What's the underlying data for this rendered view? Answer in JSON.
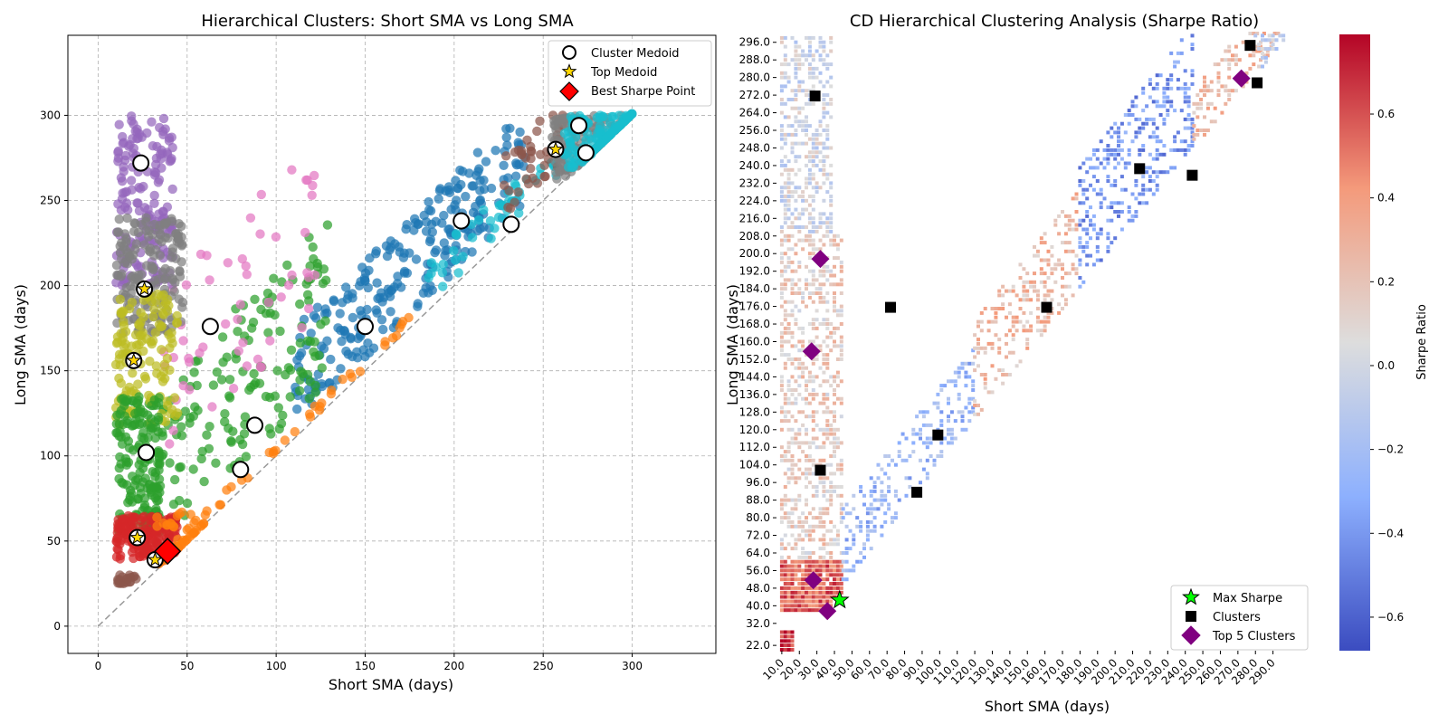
{
  "colors": {
    "blue": "#1f77b4",
    "orange": "#ff7f0e",
    "green": "#2ca02c",
    "red": "#d62728",
    "purple": "#9467bd",
    "brown": "#8c564b",
    "pink": "#e377c2",
    "gray": "#7f7f7f",
    "olive": "#bcbd22",
    "cyan": "#17becf",
    "gold": "#ffd700",
    "best": "#ff0000",
    "max_star": "#00ff00",
    "top_cluster": "#800080"
  },
  "chart_data": [
    {
      "type": "scatter",
      "title": "Hierarchical Clusters: Short SMA vs Long SMA",
      "xlabel": "Short SMA (days)",
      "ylabel": "Long SMA (days)",
      "xlim": [
        -17,
        347
      ],
      "ylim": [
        -16,
        347
      ],
      "xticks": [
        0,
        50,
        100,
        150,
        200,
        250,
        300
      ],
      "yticks": [
        0,
        50,
        100,
        150,
        200,
        250,
        300
      ],
      "grid": true,
      "diagonal": [
        [
          0,
          0
        ],
        [
          300,
          300
        ]
      ],
      "legend": {
        "position": "top-right",
        "items": [
          {
            "label": "Cluster Medoid",
            "marker": "open-circle"
          },
          {
            "label": "Top Medoid",
            "marker": "star"
          },
          {
            "label": "Best Sharpe Point",
            "marker": "diamond"
          }
        ]
      },
      "cluster_regions": [
        {
          "color": "purple",
          "x": [
            10,
            42
          ],
          "y": [
            200,
            300
          ],
          "n": 180
        },
        {
          "color": "gray",
          "x": [
            10,
            48
          ],
          "y": [
            172,
            240
          ],
          "n": 170
        },
        {
          "color": "olive",
          "x": [
            10,
            45
          ],
          "y": [
            118,
            195
          ],
          "n": 130
        },
        {
          "color": "green",
          "x": [
            10,
            35
          ],
          "y": [
            55,
            135
          ],
          "n": 160
        },
        {
          "color": "red",
          "x": [
            10,
            45
          ],
          "y": [
            38,
            65
          ],
          "n": 190
        },
        {
          "color": "brown",
          "x": [
            10,
            22
          ],
          "y": [
            22,
            30
          ],
          "n": 20
        },
        {
          "color": "orange",
          "x": [
            28,
            60
          ],
          "y": [
            32,
            68
          ],
          "n": 40
        },
        {
          "color": "gray",
          "x": [
            255,
            300
          ],
          "y": [
            262,
            300
          ],
          "n": 150
        },
        {
          "color": "cyan",
          "x": [
            262,
            300
          ],
          "y": [
            268,
            300
          ],
          "n": 140
        }
      ],
      "cluster_bands": [
        {
          "color": "blue",
          "x": [
            110,
            240
          ],
          "dmin": 8,
          "dmax": 65,
          "n": 260
        },
        {
          "color": "green",
          "x": [
            25,
            130
          ],
          "dmin": 14,
          "dmax": 110,
          "n": 170
        },
        {
          "color": "orange",
          "x": [
            45,
            175
          ],
          "dmin": 2,
          "dmax": 8,
          "n": 40
        },
        {
          "color": "cyan",
          "x": [
            185,
            262
          ],
          "dmin": 5,
          "dmax": 30,
          "n": 45
        },
        {
          "color": "brown",
          "x": [
            228,
            262
          ],
          "dmin": 10,
          "dmax": 50,
          "n": 40
        },
        {
          "color": "pink",
          "x": [
            35,
            125
          ],
          "dmin": 60,
          "dmax": 165,
          "n": 55
        }
      ],
      "medoids": [
        [
          24,
          272
        ],
        [
          26,
          198
        ],
        [
          20,
          156
        ],
        [
          27,
          102
        ],
        [
          22,
          52
        ],
        [
          32,
          39
        ],
        [
          63,
          176
        ],
        [
          88,
          118
        ],
        [
          80,
          92
        ],
        [
          150,
          176
        ],
        [
          204,
          238
        ],
        [
          232,
          236
        ],
        [
          257,
          280
        ],
        [
          270,
          294
        ],
        [
          274,
          278
        ]
      ],
      "top_medoids": [
        [
          26,
          198
        ],
        [
          20,
          156
        ],
        [
          22,
          52
        ],
        [
          32,
          39
        ],
        [
          257,
          280
        ]
      ],
      "best_sharpe_point": [
        39,
        44
      ]
    },
    {
      "type": "heatmap",
      "title": "CD Hierarchical Clustering Analysis (Sharpe Ratio)",
      "xlabel": "Short SMA (days)",
      "ylabel": "Long SMA (days)",
      "xlim": [
        8,
        300
      ],
      "ylim": [
        20,
        300
      ],
      "xticks": [
        "10.0",
        "20.0",
        "30.0",
        "40.0",
        "50.0",
        "60.0",
        "70.0",
        "80.0",
        "90.0",
        "100.0",
        "110.0",
        "120.0",
        "130.0",
        "140.0",
        "150.0",
        "160.0",
        "170.0",
        "180.0",
        "190.0",
        "200.0",
        "210.0",
        "220.0",
        "230.0",
        "240.0",
        "250.0",
        "260.0",
        "270.0",
        "280.0",
        "290.0"
      ],
      "yticks": [
        "22.0",
        "32.0",
        "40.0",
        "48.0",
        "56.0",
        "64.0",
        "72.0",
        "80.0",
        "88.0",
        "96.0",
        "104.0",
        "112.0",
        "120.0",
        "128.0",
        "136.0",
        "144.0",
        "152.0",
        "160.0",
        "168.0",
        "176.0",
        "184.0",
        "192.0",
        "200.0",
        "208.0",
        "216.0",
        "224.0",
        "232.0",
        "240.0",
        "248.0",
        "256.0",
        "264.0",
        "272.0",
        "280.0",
        "288.0",
        "296.0"
      ],
      "colorbar": {
        "label": "Sharpe Ratio",
        "range": [
          -0.68,
          0.79
        ],
        "ticks": [
          "−0.6",
          "−0.4",
          "−0.2",
          "0.0",
          "0.2",
          "0.4",
          "0.6"
        ],
        "tick_values": [
          -0.6,
          -0.4,
          -0.2,
          0.0,
          0.2,
          0.4,
          0.6
        ]
      },
      "legend": {
        "position": "bottom-right",
        "items": [
          {
            "label": "Max Sharpe",
            "marker": "star"
          },
          {
            "label": "Clusters",
            "marker": "square"
          },
          {
            "label": "Top 5 Clusters",
            "marker": "diamond"
          }
        ]
      },
      "sharpe_regions": [
        {
          "x": [
            10,
            45
          ],
          "y": [
            38,
            62
          ],
          "value": 0.55
        },
        {
          "x": [
            10,
            18
          ],
          "y": [
            20,
            30
          ],
          "value": 0.7
        },
        {
          "x": [
            10,
            45
          ],
          "y": [
            62,
            210
          ],
          "value": 0.15
        },
        {
          "x": [
            10,
            40
          ],
          "y": [
            210,
            300
          ],
          "value": 0.0
        },
        {
          "x": [
            45,
            120
          ],
          "dmin": 5,
          "dmax": 40,
          "value": -0.25
        },
        {
          "x": [
            120,
            180
          ],
          "dmin": 5,
          "dmax": 50,
          "value": 0.25
        },
        {
          "x": [
            180,
            245
          ],
          "dmin": 5,
          "dmax": 60,
          "value": -0.4
        },
        {
          "x": [
            245,
            300
          ],
          "dmin": 3,
          "dmax": 30,
          "value": 0.25
        },
        {
          "x": [
            280,
            300
          ],
          "y": [
            285,
            300
          ],
          "value": -0.05
        }
      ],
      "cluster_points": [
        [
          30,
          272
        ],
        [
          33,
          102
        ],
        [
          73,
          176
        ],
        [
          88,
          92
        ],
        [
          100,
          118
        ],
        [
          162,
          176
        ],
        [
          215,
          239
        ],
        [
          245,
          236
        ],
        [
          278,
          295
        ],
        [
          282,
          278
        ]
      ],
      "top5_clusters": [
        [
          33,
          198
        ],
        [
          28,
          156
        ],
        [
          29,
          52
        ],
        [
          37,
          38
        ],
        [
          273,
          280
        ]
      ],
      "max_sharpe": [
        44,
        43
      ]
    }
  ]
}
